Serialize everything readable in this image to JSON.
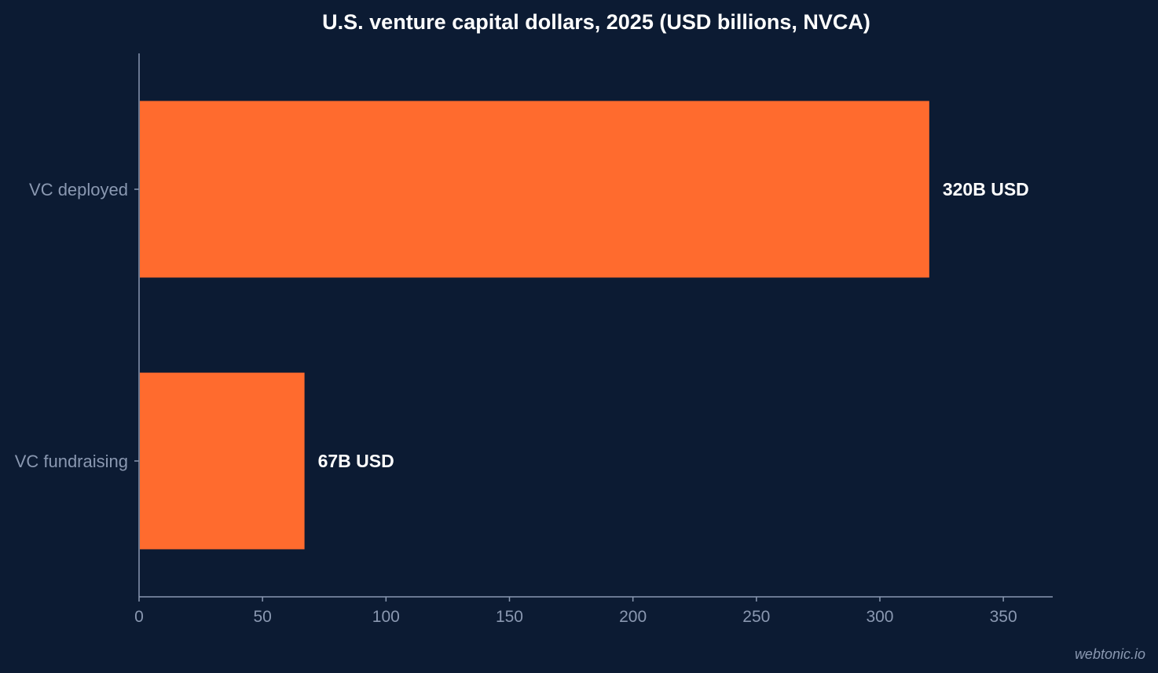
{
  "chart_data": {
    "type": "bar",
    "orientation": "horizontal",
    "title": "U.S. venture capital dollars, 2025 (USD billions, NVCA)",
    "categories": [
      "VC deployed",
      "VC fundraising"
    ],
    "values": [
      320,
      67
    ],
    "data_labels": [
      "320B USD",
      "67B USD"
    ],
    "xlim": [
      0,
      370
    ],
    "xticks": [
      0,
      50,
      100,
      150,
      200,
      250,
      300,
      350
    ],
    "xlabel": "",
    "ylabel": "",
    "grid": false,
    "bar_color": "#ff6b2e"
  },
  "watermark": "webtonic.io",
  "colors": {
    "background": "#0c1b33",
    "axis": "#8a98b1",
    "text": "#ffffff"
  }
}
